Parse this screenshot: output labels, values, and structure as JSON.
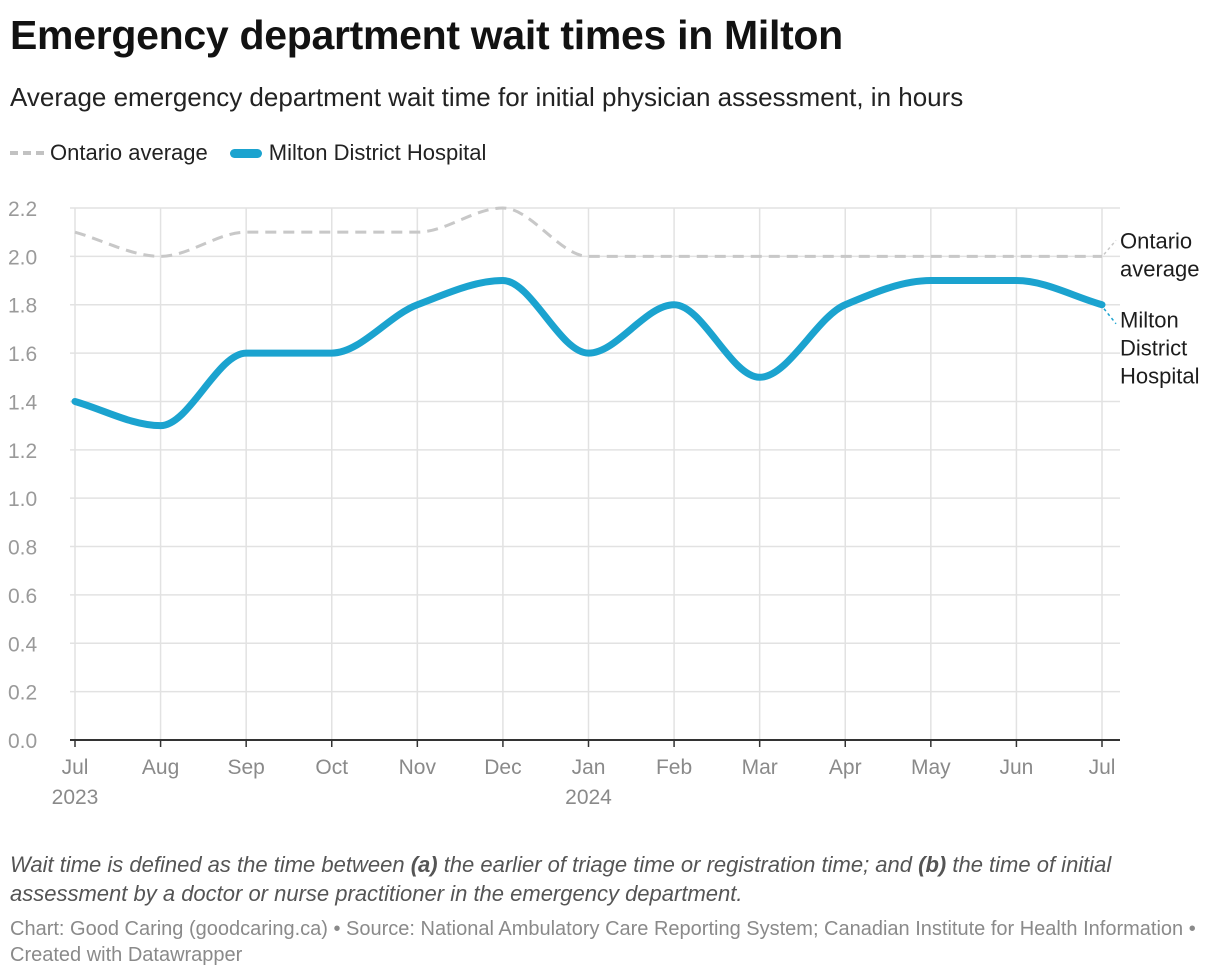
{
  "title": "Emergency department wait times in Milton",
  "subtitle": "Average emergency department wait time for initial physician assessment, in hours",
  "legend": [
    {
      "name": "Ontario average",
      "style": "dashed",
      "color": "#c2c2c2"
    },
    {
      "name": "Milton District Hospital",
      "style": "solid",
      "color": "#1ba3cf"
    }
  ],
  "note": {
    "part1": "Wait time is defined as the time between ",
    "a_label": "(a)",
    "part2": " the earlier of triage time or registration time; and ",
    "b_label": "(b)",
    "part3": " the time of initial assessment by a doctor or nurse practitioner in the emergency department."
  },
  "footer": "Chart: Good Caring (goodcaring.ca) • Source: National Ambulatory Care Reporting System; Canadian Institute for Health Information • Created with Datawrapper",
  "chart_data": {
    "type": "line",
    "title": "Emergency department wait times in Milton",
    "subtitle": "Average emergency department wait time for initial physician assessment, in hours",
    "x": [
      "2023-07",
      "2023-08",
      "2023-09",
      "2023-10",
      "2023-11",
      "2023-12",
      "2024-01",
      "2024-02",
      "2024-03",
      "2024-04",
      "2024-05",
      "2024-06",
      "2024-07"
    ],
    "x_tick_labels": [
      {
        "month": "Jul",
        "year": "2023"
      },
      {
        "month": "Aug",
        "year": ""
      },
      {
        "month": "Sep",
        "year": ""
      },
      {
        "month": "Oct",
        "year": ""
      },
      {
        "month": "Nov",
        "year": ""
      },
      {
        "month": "Dec",
        "year": ""
      },
      {
        "month": "Jan",
        "year": "2024"
      },
      {
        "month": "Feb",
        "year": ""
      },
      {
        "month": "Mar",
        "year": ""
      },
      {
        "month": "Apr",
        "year": ""
      },
      {
        "month": "May",
        "year": ""
      },
      {
        "month": "Jun",
        "year": ""
      },
      {
        "month": "Jul",
        "year": ""
      }
    ],
    "y_ticks": [
      0.0,
      0.2,
      0.4,
      0.6,
      0.8,
      1.0,
      1.2,
      1.4,
      1.6,
      1.8,
      2.0,
      2.2
    ],
    "ylim": [
      0,
      2.2
    ],
    "grid": true,
    "legend_position": "top-left",
    "series": [
      {
        "name": "Ontario average",
        "end_label": [
          "Ontario",
          "average"
        ],
        "color": "#c8c8c8",
        "style": "dashed",
        "values": [
          2.1,
          2.0,
          2.1,
          2.1,
          2.1,
          2.2,
          2.0,
          2.0,
          2.0,
          2.0,
          2.0,
          2.0,
          2.0
        ]
      },
      {
        "name": "Milton District Hospital",
        "end_label": [
          "Milton",
          "District",
          "Hospital"
        ],
        "color": "#1ba3cf",
        "style": "solid",
        "values": [
          1.4,
          1.3,
          1.6,
          1.6,
          1.8,
          1.9,
          1.6,
          1.8,
          1.5,
          1.8,
          1.9,
          1.9,
          1.8
        ]
      }
    ]
  }
}
